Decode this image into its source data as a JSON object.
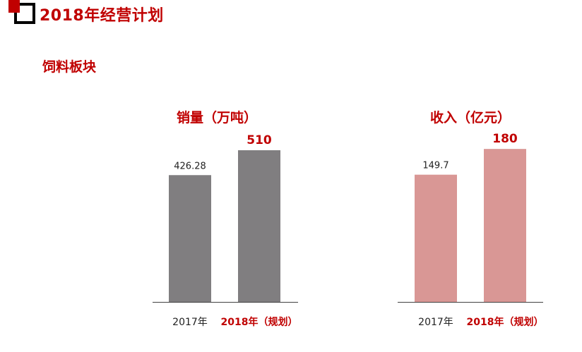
{
  "page": {
    "title": "2018年经营计划",
    "section": "饲料板块"
  },
  "colors": {
    "accent": "#c00000",
    "bar_gray": "#807e80",
    "bar_pink": "#d99795",
    "axis": "#404040"
  },
  "chart_data": [
    {
      "type": "bar",
      "title": "销量（万吨）",
      "categories": [
        "2017年",
        "2018年（规划）"
      ],
      "values": [
        426.28,
        510
      ],
      "value_labels": [
        "426.28",
        "510"
      ],
      "highlight": [
        false,
        true
      ],
      "ylim": [
        0,
        600
      ],
      "grid": false,
      "bar_color": "#807e80"
    },
    {
      "type": "bar",
      "title": "收入（亿元）",
      "categories": [
        "2017年",
        "2018年（规划）"
      ],
      "values": [
        149.7,
        180
      ],
      "value_labels": [
        "149.7",
        "180"
      ],
      "highlight": [
        false,
        true
      ],
      "ylim": [
        0,
        210
      ],
      "grid": false,
      "bar_color": "#d99795"
    }
  ]
}
